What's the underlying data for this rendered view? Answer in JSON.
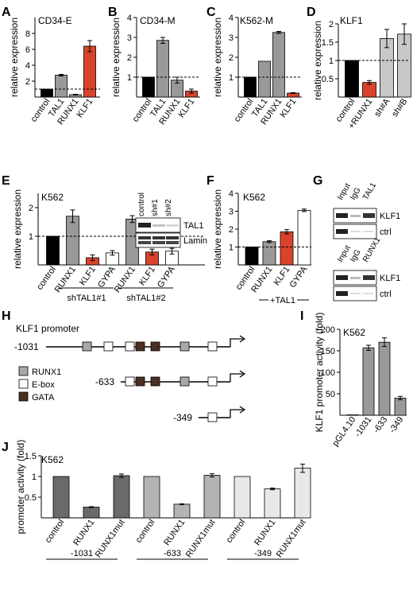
{
  "panels": {
    "A": {
      "letter": "A",
      "subtitle": "CD34-E"
    },
    "B": {
      "letter": "B",
      "subtitle": "CD34-M"
    },
    "C": {
      "letter": "C",
      "subtitle": "K562-M"
    },
    "D": {
      "letter": "D",
      "subtitle": "KLF1"
    },
    "E": {
      "letter": "E",
      "subtitle": "K562",
      "groups": [
        "shTAL1#1",
        "shTAL1#2"
      ]
    },
    "F": {
      "letter": "F",
      "subtitle": "K562",
      "bracket": "+TAL1"
    },
    "G": {
      "letter": "G"
    },
    "H": {
      "letter": "H"
    },
    "I": {
      "letter": "I",
      "subtitle": "K562"
    },
    "J": {
      "letter": "J",
      "subtitle": "K562",
      "groups": [
        "-1031",
        "-633",
        "-349"
      ]
    }
  },
  "chart_data": [
    {
      "id": "A",
      "type": "bar",
      "ylabel": "relative expression",
      "categories": [
        "control",
        "TAL1",
        "RUNX1",
        "KLF1"
      ],
      "values": [
        1.0,
        2.75,
        0.3,
        6.4
      ],
      "errors": [
        0,
        0.1,
        0.05,
        0.7
      ],
      "colors": [
        "#000000",
        "#999999",
        "#999999",
        "#d9432c"
      ],
      "ylim": [
        0,
        10
      ],
      "yticks": [
        2,
        4,
        6,
        8
      ],
      "ref": 1
    },
    {
      "id": "B",
      "type": "bar",
      "ylabel": "relative expression",
      "categories": [
        "control",
        "TAL1",
        "RUNX1",
        "KLF1"
      ],
      "values": [
        1.0,
        2.85,
        0.85,
        0.3
      ],
      "errors": [
        0,
        0.15,
        0.15,
        0.1
      ],
      "colors": [
        "#000000",
        "#999999",
        "#999999",
        "#d9432c"
      ],
      "ylim": [
        0,
        4
      ],
      "yticks": [
        1,
        2,
        3,
        4
      ],
      "ref": 1
    },
    {
      "id": "C",
      "type": "bar",
      "ylabel": "relative expression",
      "categories": [
        "control",
        "TAL1",
        "RUNX1",
        "KLF1"
      ],
      "values": [
        1.0,
        1.8,
        3.25,
        0.2
      ],
      "errors": [
        0,
        0,
        0.05,
        0.02
      ],
      "colors": [
        "#000000",
        "#999999",
        "#999999",
        "#d9432c"
      ],
      "ylim": [
        0,
        4
      ],
      "yticks": [
        1,
        2,
        3,
        4
      ],
      "ref": 1
    },
    {
      "id": "D",
      "type": "bar",
      "ylabel": "relative expression",
      "categories": [
        "control",
        "+RUNX1",
        "sh#A",
        "sh#B"
      ],
      "values": [
        1.0,
        0.4,
        1.6,
        1.72
      ],
      "errors": [
        0,
        0.05,
        0.25,
        0.28
      ],
      "colors": [
        "#000000",
        "#d9432c",
        "#c8c8c8",
        "#c8c8c8"
      ],
      "ylim": [
        0,
        2.0
      ],
      "yticks": [
        0.5,
        1.0,
        1.5,
        2.0
      ],
      "ref": 1
    },
    {
      "id": "E",
      "type": "bar",
      "ylabel": "relative expression",
      "categories": [
        "control",
        "RUNX1",
        "KLF1",
        "GYPA",
        "RUNX1",
        "KLF1",
        "GYPA"
      ],
      "values": [
        1.0,
        1.7,
        0.25,
        0.42,
        1.6,
        0.45,
        0.48
      ],
      "errors": [
        0,
        0.22,
        0.1,
        0.08,
        0.12,
        0.1,
        0.1
      ],
      "colors": [
        "#000000",
        "#999999",
        "#d9432c",
        "#ffffff",
        "#999999",
        "#d9432c",
        "#ffffff"
      ],
      "ylim": [
        0,
        2.5
      ],
      "yticks": [
        1,
        2
      ],
      "ref": 1
    },
    {
      "id": "F",
      "type": "bar",
      "ylabel": "relative expression",
      "categories": [
        "control",
        "RUNX1",
        "KLF1",
        "GYPA"
      ],
      "values": [
        1.0,
        1.3,
        1.85,
        3.05
      ],
      "errors": [
        0,
        0.05,
        0.12,
        0.07
      ],
      "colors": [
        "#000000",
        "#999999",
        "#d9432c",
        "#ffffff"
      ],
      "ylim": [
        0,
        4
      ],
      "yticks": [
        1,
        2,
        3,
        4
      ],
      "ref": 1
    },
    {
      "id": "I",
      "type": "bar",
      "ylabel": "KLF1 promoter activity (fold)",
      "categories": [
        "pGL4.10",
        "-1031",
        "-633",
        "-349"
      ],
      "values": [
        1,
        157,
        170,
        40
      ],
      "errors": [
        0,
        6,
        10,
        4
      ],
      "colors": [
        "#999999",
        "#999999",
        "#999999",
        "#999999"
      ],
      "ylim": [
        0,
        200
      ],
      "yticks": [
        50,
        100,
        150,
        200
      ]
    },
    {
      "id": "J",
      "type": "bar",
      "ylabel": "promoter activity (fold)",
      "categories": [
        "control",
        "RUNX1",
        "RUNX1mut",
        "control",
        "RUNX1",
        "RUNX1mut",
        "control",
        "RUNX1",
        "RUNX1mut"
      ],
      "values": [
        1.0,
        0.26,
        1.02,
        1.0,
        0.33,
        1.03,
        1.0,
        0.7,
        1.2
      ],
      "errors": [
        0,
        0.01,
        0.04,
        0,
        0.01,
        0.04,
        0,
        0.02,
        0.1
      ],
      "colors": [
        "#6a6a6a",
        "#6a6a6a",
        "#6a6a6a",
        "#b3b3b3",
        "#b3b3b3",
        "#b3b3b3",
        "#e8e8e8",
        "#e8e8e8",
        "#e8e8e8"
      ],
      "ylim": [
        0,
        1.5
      ],
      "yticks": [
        0.5,
        1,
        1.5
      ]
    }
  ],
  "blot_E": {
    "columns": [
      "control",
      "sh#1",
      "sh#2"
    ],
    "rows": [
      "TAL1",
      "Lamin"
    ]
  },
  "chip_G": [
    {
      "columns": [
        "Input",
        "IgG",
        "TAL1"
      ],
      "rows": [
        "KLF1",
        "ctrl"
      ]
    },
    {
      "columns": [
        "Input",
        "IgG",
        "RUNX1"
      ],
      "rows": [
        "KLF1",
        "ctrl"
      ]
    }
  ],
  "diagram_H": {
    "title": "KLF1 promoter",
    "constructs": [
      "-1031",
      "-633",
      "-349"
    ],
    "legend": [
      {
        "label": "RUNX1",
        "color": "#a8a8a8"
      },
      {
        "label": "E-box",
        "color": "#ffffff"
      },
      {
        "label": "GATA",
        "color": "#4a3021"
      }
    ]
  }
}
